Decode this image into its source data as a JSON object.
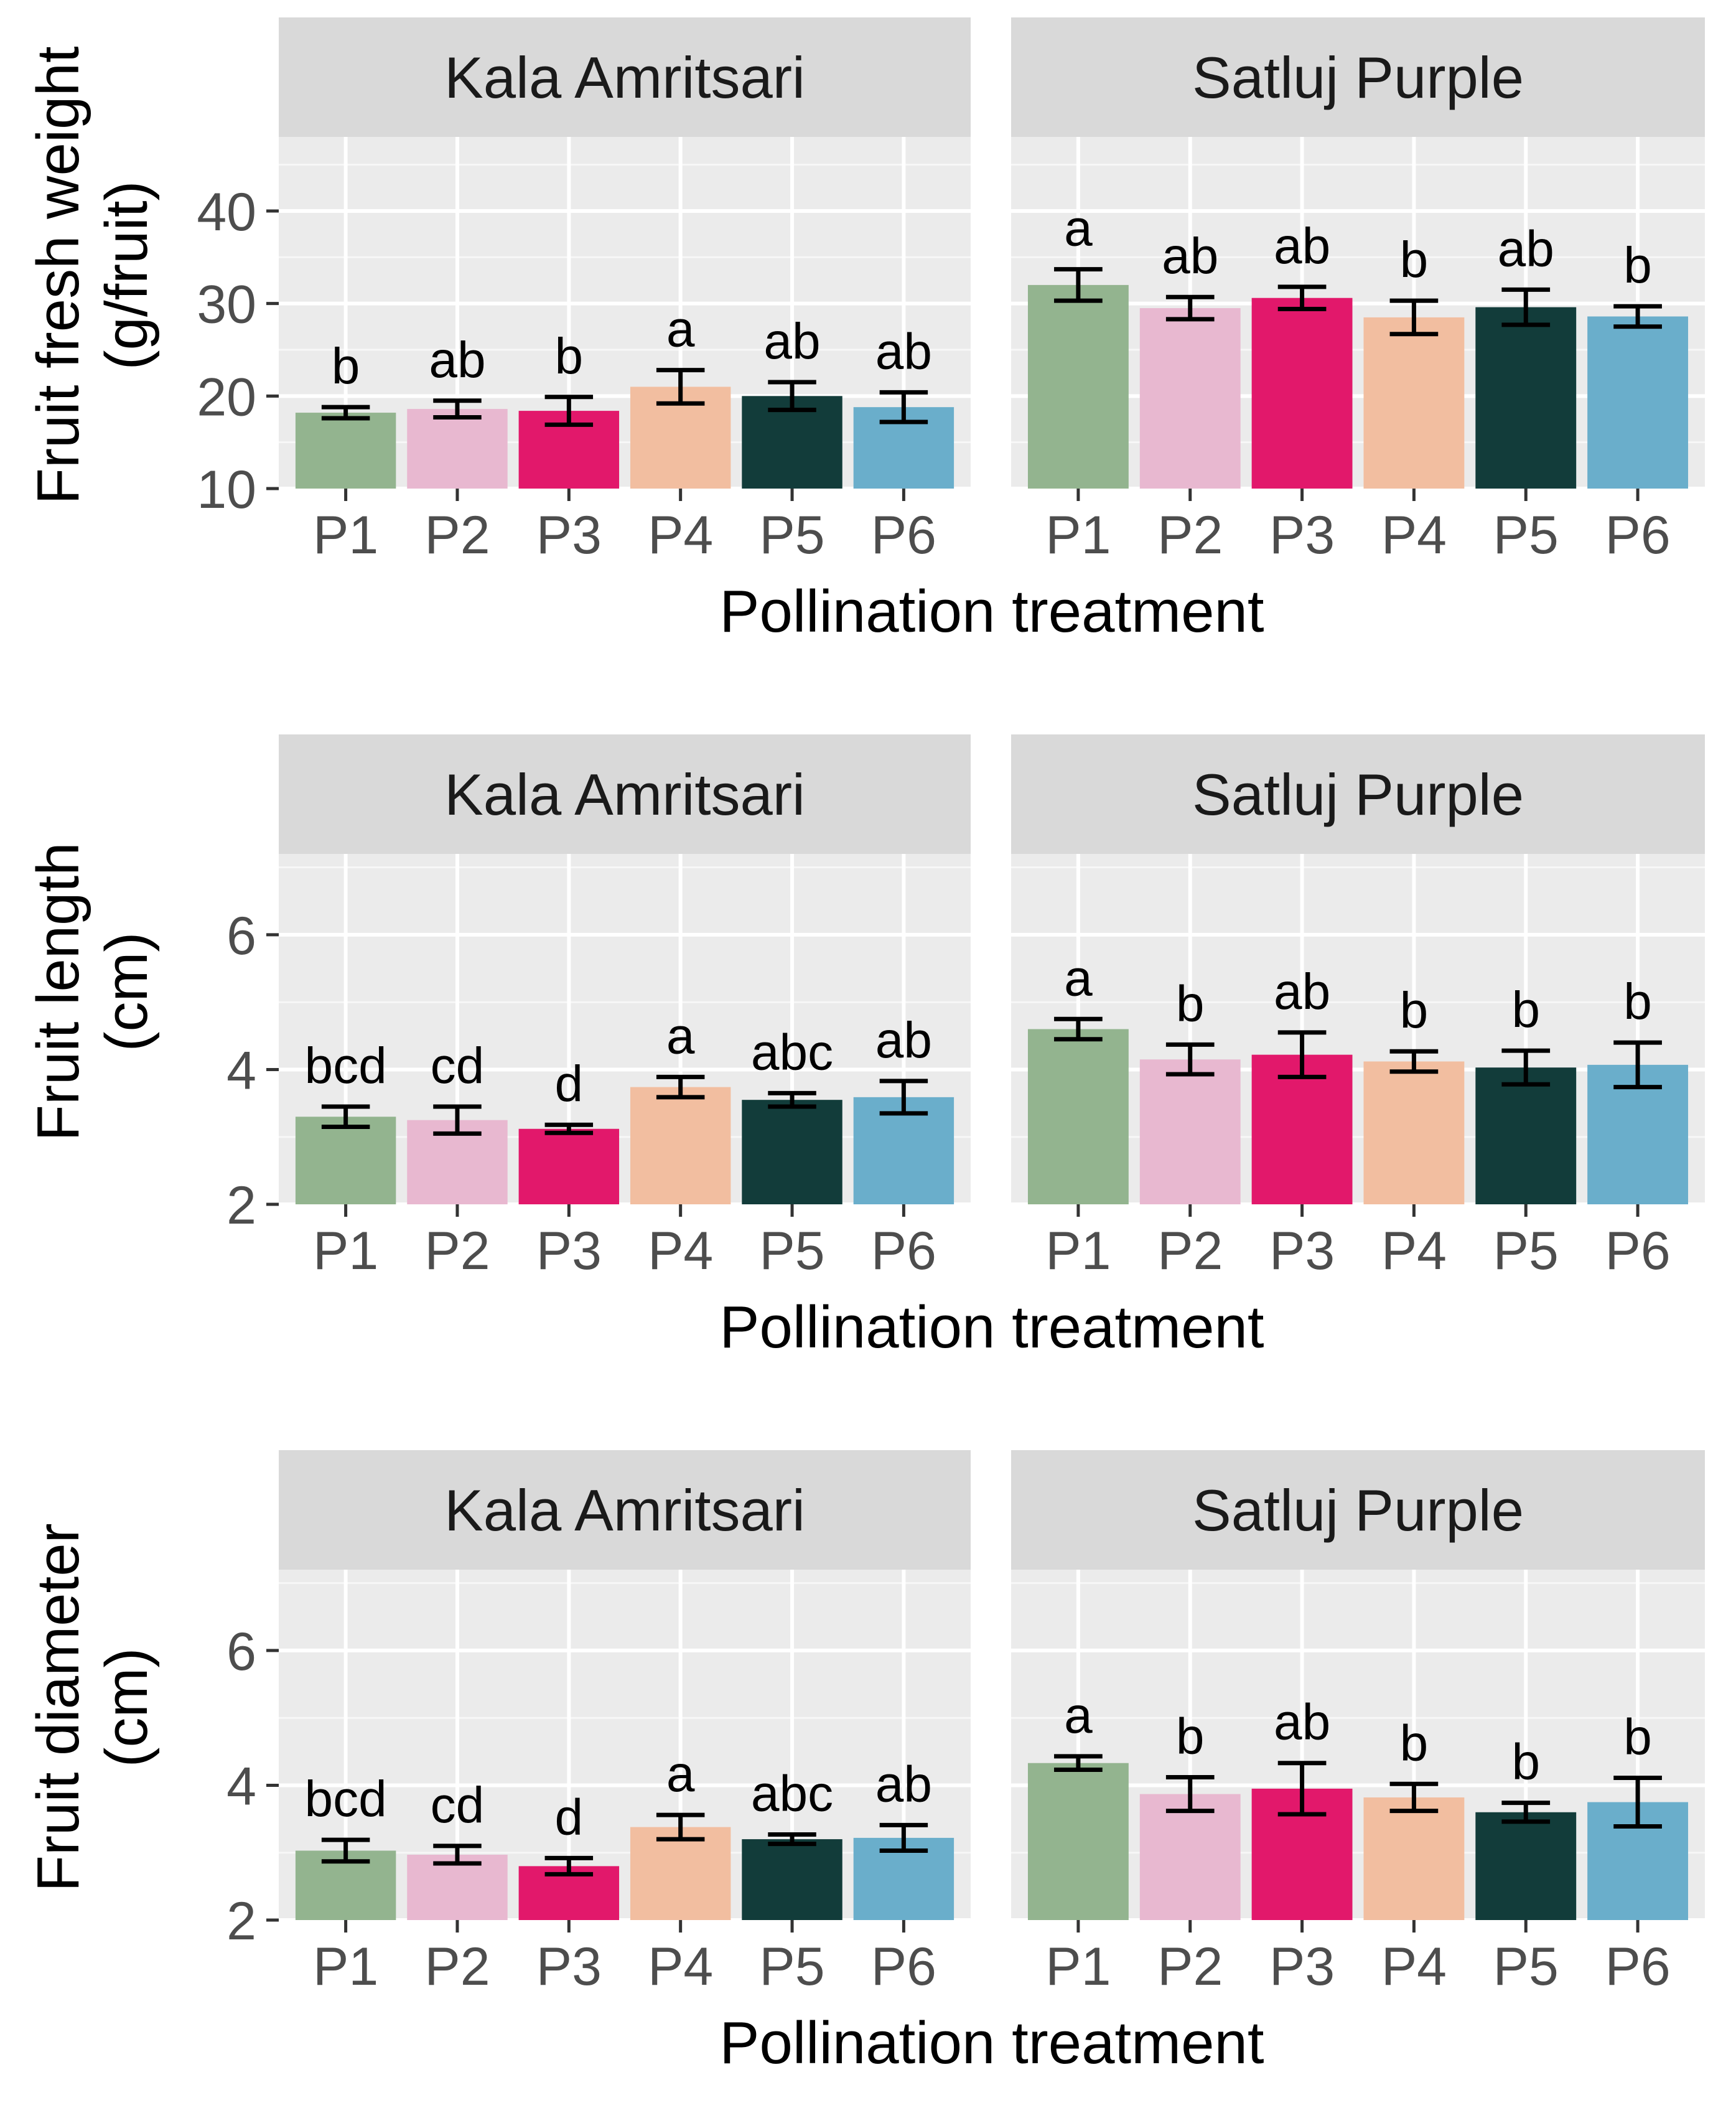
{
  "chart_data": [
    {
      "type": "bar",
      "ylabel": [
        "Fruit fresh weight",
        "(g/fruit)"
      ],
      "xlabel": "Pollination treatment",
      "ylim": [
        10,
        48
      ],
      "yticks": [
        10,
        20,
        30,
        40
      ],
      "categories": [
        "P1",
        "P2",
        "P3",
        "P4",
        "P5",
        "P6"
      ],
      "colors": [
        "#93b48f",
        "#e8b8d0",
        "#e2186b",
        "#f2bea0",
        "#123c3a",
        "#6aaecb"
      ],
      "facets": [
        {
          "name": "Kala Amritsari",
          "values": [
            18.2,
            18.6,
            18.4,
            21.0,
            20.0,
            18.8
          ],
          "errors": [
            0.6,
            0.9,
            1.5,
            1.8,
            1.5,
            1.6
          ],
          "letters": [
            "b",
            "ab",
            "b",
            "a",
            "ab",
            "ab"
          ]
        },
        {
          "name": "Satluj Purple",
          "values": [
            32.0,
            29.5,
            30.6,
            28.5,
            29.6,
            28.6
          ],
          "errors": [
            1.7,
            1.2,
            1.2,
            1.8,
            1.9,
            1.1
          ],
          "letters": [
            "a",
            "ab",
            "ab",
            "b",
            "ab",
            "b"
          ]
        }
      ]
    },
    {
      "type": "bar",
      "ylabel": [
        "Fruit length",
        "(cm)"
      ],
      "xlabel": "Pollination treatment",
      "ylim": [
        2,
        7.2
      ],
      "yticks": [
        2,
        4,
        6
      ],
      "categories": [
        "P1",
        "P2",
        "P3",
        "P4",
        "P5",
        "P6"
      ],
      "colors": [
        "#93b48f",
        "#e8b8d0",
        "#e2186b",
        "#f2bea0",
        "#123c3a",
        "#6aaecb"
      ],
      "facets": [
        {
          "name": "Kala Amritsari",
          "values": [
            3.3,
            3.25,
            3.12,
            3.74,
            3.55,
            3.59
          ],
          "errors": [
            0.15,
            0.2,
            0.06,
            0.15,
            0.1,
            0.24
          ],
          "letters": [
            "bcd",
            "cd",
            "d",
            "a",
            "abc",
            "ab"
          ]
        },
        {
          "name": "Satluj Purple",
          "values": [
            4.6,
            4.15,
            4.22,
            4.12,
            4.03,
            4.07
          ],
          "errors": [
            0.15,
            0.22,
            0.33,
            0.15,
            0.25,
            0.33
          ],
          "letters": [
            "a",
            "b",
            "ab",
            "b",
            "b",
            "b"
          ]
        }
      ]
    },
    {
      "type": "bar",
      "ylabel": [
        "Fruit diameter",
        "(cm)"
      ],
      "xlabel": "Pollination treatment",
      "ylim": [
        2,
        7.2
      ],
      "yticks": [
        2,
        4,
        6
      ],
      "categories": [
        "P1",
        "P2",
        "P3",
        "P4",
        "P5",
        "P6"
      ],
      "colors": [
        "#93b48f",
        "#e8b8d0",
        "#e2186b",
        "#f2bea0",
        "#123c3a",
        "#6aaecb"
      ],
      "facets": [
        {
          "name": "Kala Amritsari",
          "values": [
            3.03,
            2.97,
            2.8,
            3.38,
            3.2,
            3.22
          ],
          "errors": [
            0.16,
            0.13,
            0.12,
            0.18,
            0.07,
            0.19
          ],
          "letters": [
            "bcd",
            "cd",
            "d",
            "a",
            "abc",
            "ab"
          ]
        },
        {
          "name": "Satluj Purple",
          "values": [
            4.33,
            3.87,
            3.95,
            3.82,
            3.6,
            3.75
          ],
          "errors": [
            0.1,
            0.25,
            0.38,
            0.2,
            0.14,
            0.36
          ],
          "letters": [
            "a",
            "b",
            "ab",
            "b",
            "b",
            "b"
          ]
        }
      ]
    }
  ]
}
